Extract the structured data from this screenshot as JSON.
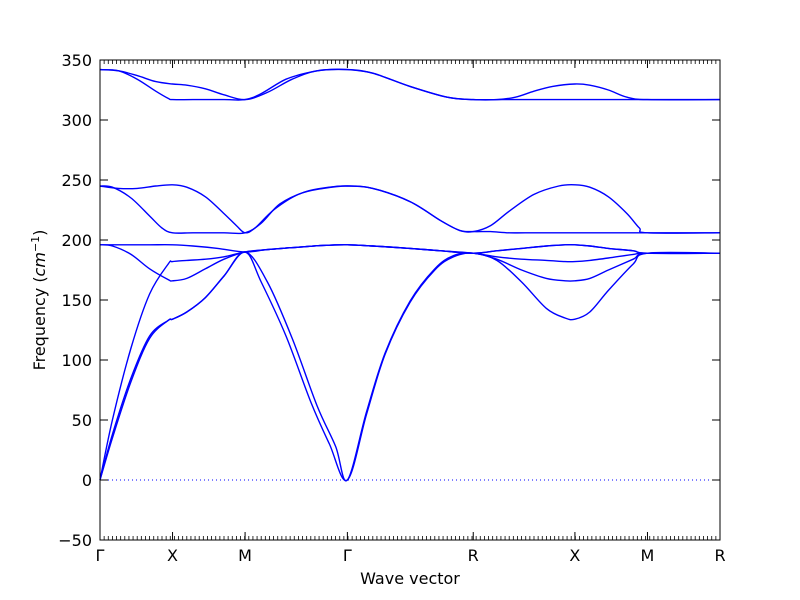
{
  "chart_data": {
    "type": "line",
    "title": "",
    "xlabel": "Wave vector",
    "ylabel_text": "Frequency (",
    "ylabel_unit_base": "cm",
    "ylabel_unit_exp": "−1",
    "ylabel_close": ")",
    "xlim": [
      0,
      1
    ],
    "ylim": [
      -50,
      350
    ],
    "yticks": [
      -50,
      0,
      50,
      100,
      150,
      200,
      250,
      300,
      350
    ],
    "ytick_labels": [
      "−50",
      "0",
      "50",
      "100",
      "150",
      "200",
      "250",
      "300",
      "350"
    ],
    "xticks": [
      {
        "label": "Γ",
        "x": 0.0
      },
      {
        "label": "X",
        "x": 0.117
      },
      {
        "label": "M",
        "x": 0.234
      },
      {
        "label": "Γ",
        "x": 0.399
      },
      {
        "label": "R",
        "x": 0.602
      },
      {
        "label": "X",
        "x": 0.766
      },
      {
        "label": "M",
        "x": 0.883
      },
      {
        "label": "R",
        "x": 1.0
      }
    ],
    "zero_line": {
      "y": 0,
      "style": "dotted"
    },
    "line_color": "#0000ff",
    "series": [
      {
        "points": [
          [
            0,
            0
          ],
          [
            0.02,
            35
          ],
          [
            0.05,
            82
          ],
          [
            0.08,
            118
          ],
          [
            0.11,
            133
          ],
          [
            0.117,
            134
          ],
          [
            0.14,
            140
          ],
          [
            0.17,
            152
          ],
          [
            0.2,
            170
          ],
          [
            0.234,
            190
          ],
          [
            0.26,
            165
          ],
          [
            0.3,
            120
          ],
          [
            0.34,
            65
          ],
          [
            0.37,
            30
          ],
          [
            0.399,
            0
          ],
          [
            0.43,
            55
          ],
          [
            0.46,
            105
          ],
          [
            0.5,
            148
          ],
          [
            0.54,
            175
          ],
          [
            0.57,
            186
          ],
          [
            0.602,
            189
          ],
          [
            0.64,
            183
          ],
          [
            0.68,
            165
          ],
          [
            0.72,
            143
          ],
          [
            0.75,
            135
          ],
          [
            0.766,
            134
          ],
          [
            0.79,
            140
          ],
          [
            0.82,
            158
          ],
          [
            0.86,
            180
          ],
          [
            0.883,
            189
          ],
          [
            1.0,
            189
          ]
        ]
      },
      {
        "points": [
          [
            0,
            0
          ],
          [
            0.02,
            38
          ],
          [
            0.05,
            85
          ],
          [
            0.08,
            120
          ],
          [
            0.11,
            133
          ],
          [
            0.117,
            134
          ],
          [
            0.14,
            140
          ],
          [
            0.17,
            152
          ],
          [
            0.2,
            170
          ],
          [
            0.234,
            190
          ],
          [
            0.27,
            165
          ],
          [
            0.31,
            118
          ],
          [
            0.35,
            62
          ],
          [
            0.38,
            28
          ],
          [
            0.399,
            0
          ],
          [
            0.43,
            57
          ],
          [
            0.46,
            106
          ],
          [
            0.5,
            149
          ],
          [
            0.54,
            176
          ],
          [
            0.57,
            187
          ],
          [
            0.602,
            189
          ],
          [
            0.64,
            184
          ],
          [
            0.68,
            175
          ],
          [
            0.72,
            168
          ],
          [
            0.75,
            166
          ],
          [
            0.766,
            166
          ],
          [
            0.79,
            168
          ],
          [
            0.82,
            175
          ],
          [
            0.86,
            184
          ],
          [
            0.883,
            189
          ],
          [
            1.0,
            189
          ]
        ]
      },
      {
        "points": [
          [
            0,
            0
          ],
          [
            0.02,
            50
          ],
          [
            0.05,
            110
          ],
          [
            0.08,
            155
          ],
          [
            0.11,
            180
          ],
          [
            0.117,
            182
          ],
          [
            0.14,
            183
          ],
          [
            0.17,
            184
          ],
          [
            0.2,
            186
          ],
          [
            0.234,
            190
          ],
          [
            0.27,
            192
          ],
          [
            0.32,
            194
          ],
          [
            0.36,
            195.5
          ],
          [
            0.399,
            196
          ],
          [
            0.44,
            195
          ],
          [
            0.5,
            193
          ],
          [
            0.55,
            191
          ],
          [
            0.602,
            189
          ],
          [
            0.64,
            186
          ],
          [
            0.68,
            184
          ],
          [
            0.72,
            183
          ],
          [
            0.75,
            182
          ],
          [
            0.766,
            182
          ],
          [
            0.79,
            183
          ],
          [
            0.82,
            185
          ],
          [
            0.86,
            188
          ],
          [
            0.883,
            189
          ],
          [
            1.0,
            189
          ]
        ]
      },
      {
        "points": [
          [
            0,
            196
          ],
          [
            0.02,
            195
          ],
          [
            0.05,
            188
          ],
          [
            0.08,
            176
          ],
          [
            0.11,
            167
          ],
          [
            0.117,
            166
          ],
          [
            0.14,
            168
          ],
          [
            0.17,
            176
          ],
          [
            0.2,
            184
          ],
          [
            0.234,
            190
          ],
          [
            0.27,
            192
          ],
          [
            0.32,
            194
          ],
          [
            0.36,
            195.5
          ],
          [
            0.399,
            196
          ],
          [
            0.44,
            195
          ],
          [
            0.5,
            193
          ],
          [
            0.55,
            191
          ],
          [
            0.602,
            189
          ],
          [
            0.64,
            191
          ],
          [
            0.68,
            193
          ],
          [
            0.72,
            195
          ],
          [
            0.75,
            196
          ],
          [
            0.766,
            196
          ],
          [
            0.79,
            195
          ],
          [
            0.82,
            193
          ],
          [
            0.86,
            191
          ],
          [
            0.883,
            189
          ],
          [
            1.0,
            189
          ]
        ]
      },
      {
        "points": [
          [
            0,
            196
          ],
          [
            0.04,
            196
          ],
          [
            0.08,
            196
          ],
          [
            0.117,
            196
          ],
          [
            0.15,
            195
          ],
          [
            0.19,
            193
          ],
          [
            0.234,
            190
          ],
          [
            0.27,
            192
          ],
          [
            0.32,
            194
          ],
          [
            0.36,
            195.5
          ],
          [
            0.399,
            196
          ],
          [
            0.44,
            195
          ],
          [
            0.5,
            193
          ],
          [
            0.55,
            191
          ],
          [
            0.602,
            189
          ],
          [
            0.64,
            191
          ],
          [
            0.68,
            193
          ],
          [
            0.72,
            195
          ],
          [
            0.75,
            196
          ],
          [
            0.766,
            196
          ],
          [
            0.79,
            195
          ],
          [
            0.82,
            193
          ],
          [
            0.86,
            191
          ],
          [
            0.883,
            189
          ],
          [
            1.0,
            189
          ]
        ]
      },
      {
        "points": [
          [
            0,
            245
          ],
          [
            0.02,
            244
          ],
          [
            0.05,
            235
          ],
          [
            0.08,
            220
          ],
          [
            0.1,
            210
          ],
          [
            0.117,
            206
          ],
          [
            0.15,
            206
          ],
          [
            0.2,
            206
          ],
          [
            0.234,
            206
          ],
          [
            0.26,
            214
          ],
          [
            0.29,
            230
          ],
          [
            0.33,
            240
          ],
          [
            0.37,
            244
          ],
          [
            0.399,
            245
          ],
          [
            0.44,
            243
          ],
          [
            0.5,
            232
          ],
          [
            0.55,
            216
          ],
          [
            0.58,
            208
          ],
          [
            0.602,
            207
          ],
          [
            0.63,
            207
          ],
          [
            0.66,
            206
          ],
          [
            0.7,
            206
          ],
          [
            0.74,
            206
          ],
          [
            0.766,
            206
          ],
          [
            0.8,
            206
          ],
          [
            0.85,
            206
          ],
          [
            0.883,
            206
          ],
          [
            1.0,
            206
          ]
        ]
      },
      {
        "points": [
          [
            0,
            245
          ],
          [
            0.03,
            243
          ],
          [
            0.06,
            243
          ],
          [
            0.09,
            245
          ],
          [
            0.117,
            246
          ],
          [
            0.14,
            244
          ],
          [
            0.17,
            236
          ],
          [
            0.2,
            222
          ],
          [
            0.22,
            212
          ],
          [
            0.234,
            206
          ],
          [
            0.25,
            210
          ],
          [
            0.28,
            225
          ],
          [
            0.32,
            238
          ],
          [
            0.36,
            243
          ],
          [
            0.399,
            245
          ],
          [
            0.44,
            243
          ],
          [
            0.5,
            232
          ],
          [
            0.55,
            216
          ],
          [
            0.58,
            208
          ],
          [
            0.602,
            207
          ],
          [
            0.63,
            212
          ],
          [
            0.66,
            224
          ],
          [
            0.7,
            238
          ],
          [
            0.74,
            245
          ],
          [
            0.766,
            246
          ],
          [
            0.79,
            244
          ],
          [
            0.82,
            236
          ],
          [
            0.85,
            222
          ],
          [
            0.87,
            210
          ],
          [
            0.883,
            206
          ],
          [
            1.0,
            206
          ]
        ]
      },
      {
        "points": [
          [
            0,
            342
          ],
          [
            0.03,
            341
          ],
          [
            0.06,
            334
          ],
          [
            0.09,
            324
          ],
          [
            0.11,
            318
          ],
          [
            0.117,
            317
          ],
          [
            0.15,
            317
          ],
          [
            0.2,
            317
          ],
          [
            0.234,
            317
          ],
          [
            0.26,
            322
          ],
          [
            0.3,
            334
          ],
          [
            0.34,
            340
          ],
          [
            0.37,
            342
          ],
          [
            0.399,
            342
          ],
          [
            0.44,
            339
          ],
          [
            0.5,
            328
          ],
          [
            0.56,
            319
          ],
          [
            0.602,
            317
          ],
          [
            0.65,
            317
          ],
          [
            0.7,
            317
          ],
          [
            0.74,
            317
          ],
          [
            0.766,
            317
          ],
          [
            0.8,
            317
          ],
          [
            0.85,
            317
          ],
          [
            0.883,
            317
          ],
          [
            1.0,
            317
          ]
        ]
      },
      {
        "points": [
          [
            0,
            342
          ],
          [
            0.03,
            341
          ],
          [
            0.06,
            337
          ],
          [
            0.09,
            332
          ],
          [
            0.117,
            330
          ],
          [
            0.14,
            329
          ],
          [
            0.17,
            326
          ],
          [
            0.2,
            321
          ],
          [
            0.234,
            317
          ],
          [
            0.27,
            323
          ],
          [
            0.31,
            334
          ],
          [
            0.35,
            341
          ],
          [
            0.399,
            342
          ],
          [
            0.44,
            339
          ],
          [
            0.5,
            328
          ],
          [
            0.56,
            319
          ],
          [
            0.602,
            317
          ],
          [
            0.64,
            317
          ],
          [
            0.67,
            319
          ],
          [
            0.7,
            324
          ],
          [
            0.73,
            328
          ],
          [
            0.766,
            330
          ],
          [
            0.79,
            329
          ],
          [
            0.82,
            325
          ],
          [
            0.85,
            319
          ],
          [
            0.883,
            317
          ],
          [
            1.0,
            317
          ]
        ]
      }
    ]
  }
}
